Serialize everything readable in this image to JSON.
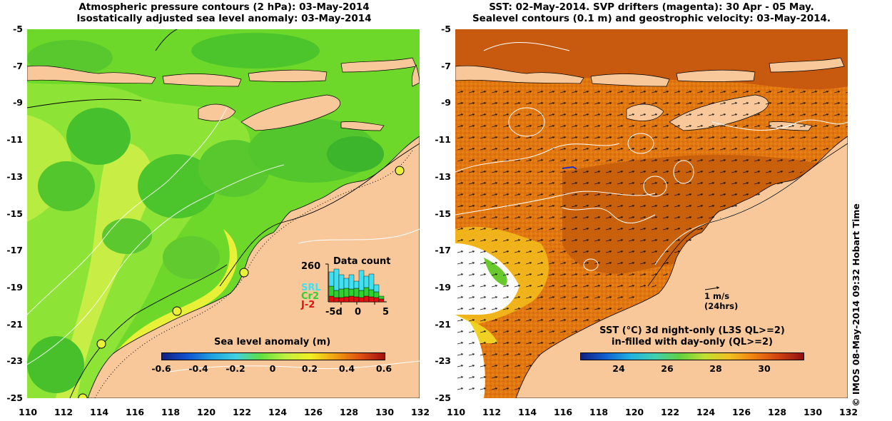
{
  "left_panel": {
    "title_line1": "Atmospheric pressure contours (2 hPa): 03-May-2014",
    "title_line2": "Isostatically adjusted sea level anomaly: 03-May-2014",
    "colorbar_title": "Sea level anomaly (m)",
    "colorbar_ticks": [
      "-0.6",
      "-0.4",
      "-0.2",
      "0",
      "0.2",
      "0.4",
      "0.6"
    ],
    "histogram": {
      "title": "Data count",
      "ymax_label": "260",
      "x_ticks": [
        "-5d",
        "0",
        "5"
      ],
      "legend": [
        {
          "name": "SRL",
          "color": "#40e0f0"
        },
        {
          "name": "Cr2",
          "color": "#30d030"
        },
        {
          "name": "J-2",
          "color": "#e01010"
        }
      ]
    }
  },
  "right_panel": {
    "title_line1": "SST: 02-May-2014. SVP drifters (magenta): 30 Apr - 05 May.",
    "title_line2": "Sealevel contours (0.1 m) and geostrophic velocity: 03-May-2014.",
    "colorbar_title_line1": "SST (°C)  3d night-only (L3S QL>=2)",
    "colorbar_title_line2": "in-filled with day-only (QL>=2)",
    "colorbar_ticks": [
      "24",
      "26",
      "28",
      "30"
    ],
    "scale_label_line1": "1 m/s",
    "scale_label_line2": "(24hrs)"
  },
  "axes": {
    "lon_ticks": [
      "110",
      "112",
      "114",
      "116",
      "118",
      "120",
      "122",
      "124",
      "126",
      "128",
      "130",
      "132"
    ],
    "lat_ticks": [
      "-5",
      "-7",
      "-9",
      "-11",
      "-13",
      "-15",
      "-17",
      "-19",
      "-21",
      "-23",
      "-25"
    ]
  },
  "copyright": "© IMOS 08-May-2014 09:32 Hobart Time",
  "colors": {
    "land": "#f8c89a",
    "sla_base": "#7ce02c",
    "sst_base": "#e0780e"
  }
}
